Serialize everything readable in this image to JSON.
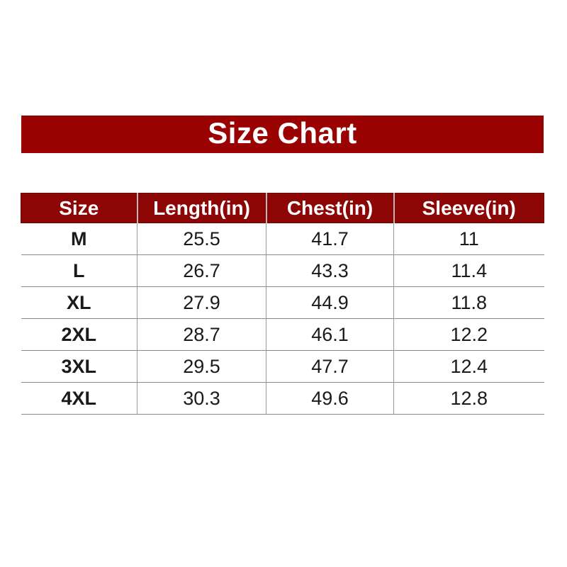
{
  "page": {
    "background": "#ffffff"
  },
  "banner": {
    "title": "Size Chart",
    "bg_color": "#9a0202",
    "text_color": "#ffffff"
  },
  "table": {
    "header_bg": "#8c0606",
    "header_text_color": "#ffffff",
    "grid_color": "#8a8a8a"
  },
  "chart_data": {
    "type": "table",
    "title": "Size Chart",
    "columns": [
      "Size",
      "Length(in)",
      "Chest(in)",
      "Sleeve(in)"
    ],
    "rows": [
      [
        "M",
        "25.5",
        "41.7",
        "11"
      ],
      [
        "L",
        "26.7",
        "43.3",
        "11.4"
      ],
      [
        "XL",
        "27.9",
        "44.9",
        "11.8"
      ],
      [
        "2XL",
        "28.7",
        "46.1",
        "12.2"
      ],
      [
        "3XL",
        "29.5",
        "47.7",
        "12.4"
      ],
      [
        "4XL",
        "30.3",
        "49.6",
        "12.8"
      ]
    ]
  }
}
